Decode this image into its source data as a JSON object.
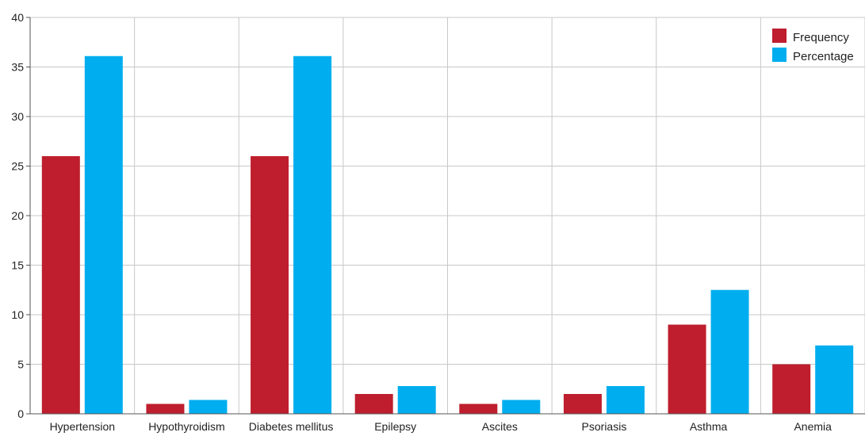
{
  "chart_data": {
    "type": "bar",
    "title": "",
    "xlabel": "",
    "ylabel": "",
    "categories": [
      "Hypertension",
      "Hypothyroidism",
      "Diabetes mellitus",
      "Epilepsy",
      "Ascites",
      "Psoriasis",
      "Asthma",
      "Anemia"
    ],
    "series": [
      {
        "name": "Frequency",
        "color": "#be1e2d",
        "values": [
          26,
          1,
          26,
          2,
          1,
          2,
          9,
          5
        ]
      },
      {
        "name": "Percentage",
        "color": "#00aeef",
        "values": [
          36.1,
          1.4,
          36.1,
          2.8,
          1.4,
          2.8,
          12.5,
          6.9
        ]
      }
    ],
    "ylim": [
      0,
      40
    ],
    "yticks": [
      "0",
      "5",
      "10",
      "15",
      "20",
      "25",
      "30",
      "35",
      "40"
    ],
    "grid": true,
    "legend": "top-right"
  }
}
